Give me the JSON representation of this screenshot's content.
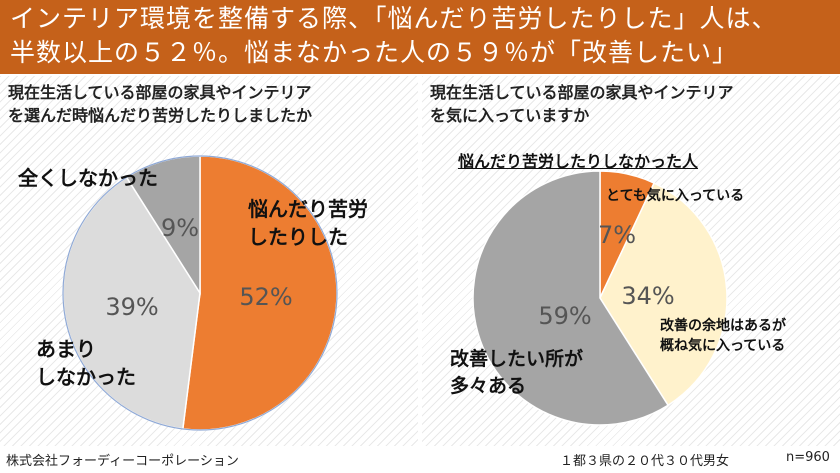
{
  "banner": {
    "line1": "インテリア環境を整備する際、「悩んだり苦労したりした」人は、",
    "line2": "半数以上の５２％。悩まなかった人の５９％が「改善したい」"
  },
  "footer": {
    "company": "株式会社フォーディーコーポレーション",
    "sample": "１都３県の２０代３０代男女",
    "n": "n=960"
  },
  "chart_data": [
    {
      "type": "pie",
      "title_lines": [
        "現在生活している部屋の家具やインテリア",
        "を選んだ時悩んだり苦労したりしましたか"
      ],
      "slices": [
        {
          "label_lines": [
            "悩んだり苦労",
            "したりした"
          ],
          "value": 52,
          "display": "52%",
          "color": "#ed7d31"
        },
        {
          "label_lines": [
            "あまり",
            "しなかった"
          ],
          "value": 39,
          "display": "39%",
          "color": "#dcdcdc"
        },
        {
          "label_lines": [
            "全くしなかった"
          ],
          "value": 9,
          "display": "9%",
          "color": "#a5a5a5"
        }
      ]
    },
    {
      "type": "pie",
      "title_lines": [
        "現在生活している部屋の家具やインテリア",
        "を気に入っていますか"
      ],
      "subtitle": "悩んだり苦労したりしなかった人",
      "slices": [
        {
          "label_lines": [
            "とても気に入っている"
          ],
          "value": 7,
          "display": "7%",
          "color": "#ed7d31"
        },
        {
          "label_lines": [
            "改善の余地はあるが",
            "概ね気に入っている"
          ],
          "value": 34,
          "display": "34%",
          "color": "#fff2cc"
        },
        {
          "label_lines": [
            "改善したい所が",
            "多々ある"
          ],
          "value": 59,
          "display": "59%",
          "color": "#a5a5a5"
        }
      ]
    }
  ]
}
